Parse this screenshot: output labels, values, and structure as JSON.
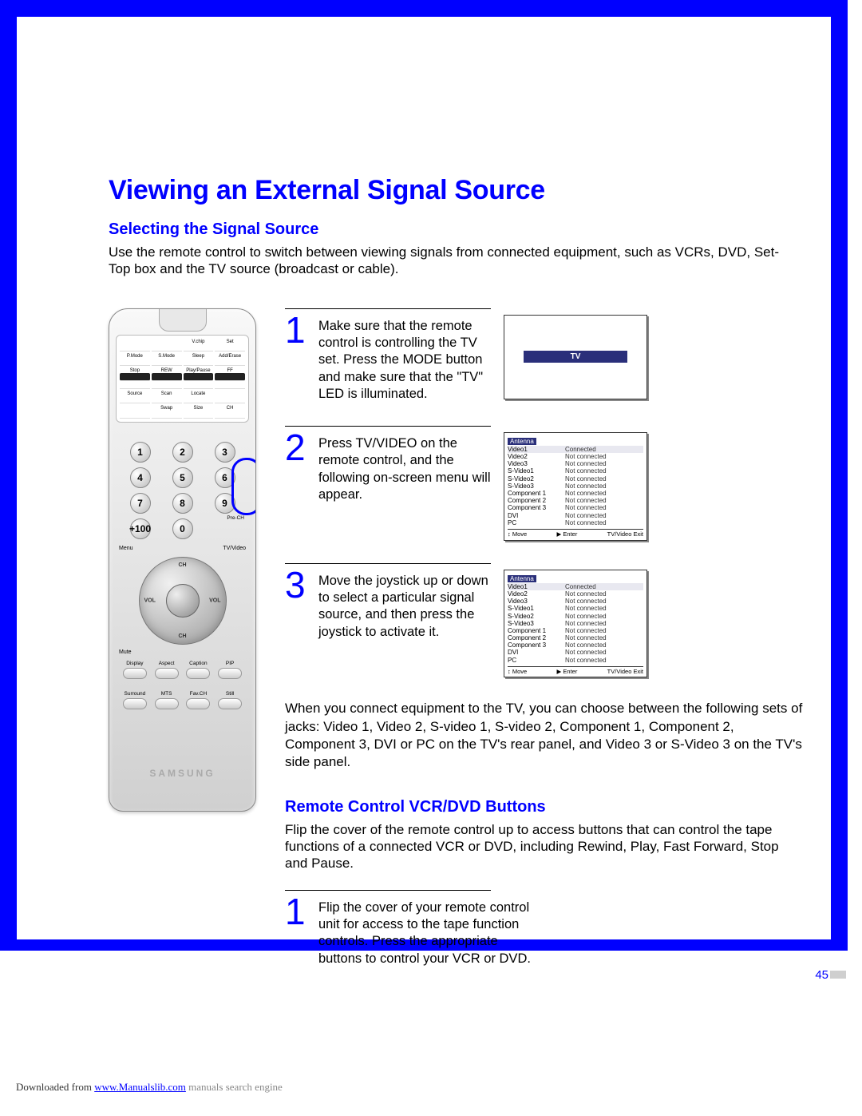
{
  "page": {
    "title": "Viewing an External Signal Source",
    "section1_title": "Selecting the Signal Source",
    "intro": "Use the remote control to switch between viewing signals from connected equipment, such as VCRs, DVD, Set-Top box and the TV source (broadcast or cable).",
    "section2_title": "Remote Control VCR/DVD Buttons",
    "section2_intro": "Flip the cover of the remote control up to access buttons that can control the tape functions of a connected VCR or DVD, including Rewind, Play, Fast Forward, Stop and Pause.",
    "body_para": "When you connect equipment to the TV, you can choose between the following sets of jacks: Video 1, Video 2, S-video 1, S-video 2, Component 1, Component 2, Component 3, DVI or PC on the TV's rear panel, and Video 3 or S-Video 3 on the TV's side panel.",
    "page_number": "45"
  },
  "steps_a": [
    {
      "num": "1",
      "text": "Make sure that the remote control is controlling the TV set. Press the MODE button and make sure that the \"TV\" LED is illuminated."
    },
    {
      "num": "2",
      "text": "Press TV/VIDEO on the remote control, and the following on-screen menu will appear."
    },
    {
      "num": "3",
      "text": "Move the joystick up or down to select a particular signal source, and then press the joystick to activate it."
    }
  ],
  "steps_b": [
    {
      "num": "1",
      "text": "Flip the cover of your remote control unit for access to the tape function controls. Press the appropriate buttons to control your VCR or DVD."
    }
  ],
  "tv_box": {
    "label": "TV"
  },
  "source_menu": {
    "header": "Antenna",
    "items": [
      {
        "label": "Video1",
        "status": "Connected"
      },
      {
        "label": "Video2",
        "status": "Not connected"
      },
      {
        "label": "Video3",
        "status": "Not connected"
      },
      {
        "label": "S-Video1",
        "status": "Not connected"
      },
      {
        "label": "S-Video2",
        "status": "Not connected"
      },
      {
        "label": "S-Video3",
        "status": "Not connected"
      },
      {
        "label": "Component 1",
        "status": "Not connected"
      },
      {
        "label": "Component 2",
        "status": "Not connected"
      },
      {
        "label": "Component 3",
        "status": "Not connected"
      },
      {
        "label": "DVI",
        "status": "Not connected"
      },
      {
        "label": "PC",
        "status": "Not connected"
      }
    ],
    "footer": {
      "move": "Move",
      "enter": "Enter",
      "exit": "TV/Video  Exit"
    }
  },
  "remote": {
    "panel_row1": [
      "",
      "",
      "V.chip",
      "Set"
    ],
    "panel_row2": [
      "P.Mode",
      "S.Mode",
      "Sleep",
      "Add/Erase"
    ],
    "panel_row3": [
      "Stop",
      "REW",
      "Play/Pause",
      "FF"
    ],
    "panel_row4": [
      "Source",
      "Scan",
      "Locate",
      ""
    ],
    "panel_row5": [
      "",
      "Swap",
      "Size",
      "CH"
    ],
    "keypad": [
      "1",
      "2",
      "3",
      "4",
      "5",
      "6",
      "7",
      "8",
      "9",
      "+100",
      "0",
      ""
    ],
    "prech": "Pre-CH",
    "menu": "Menu",
    "tvvideo": "TV/Video",
    "mute": "Mute",
    "joy": {
      "up": "CH",
      "down": "CH",
      "left": "VOL",
      "right": "VOL"
    },
    "row4a": [
      "Display",
      "Aspect",
      "Caption",
      "PIP"
    ],
    "row4b": [
      "Surround",
      "MTS",
      "Fav.CH",
      "Still"
    ],
    "brand": "SAMSUNG"
  },
  "footer": {
    "dl": "Downloaded from ",
    "link": "www.Manualslib.com",
    "rest": "  manuals search engine"
  },
  "colors": {
    "accent": "#0000ff",
    "menu_banner": "#2a2f7a",
    "shadow": "#888888",
    "text": "#000000",
    "footer_grey": "#888888"
  }
}
